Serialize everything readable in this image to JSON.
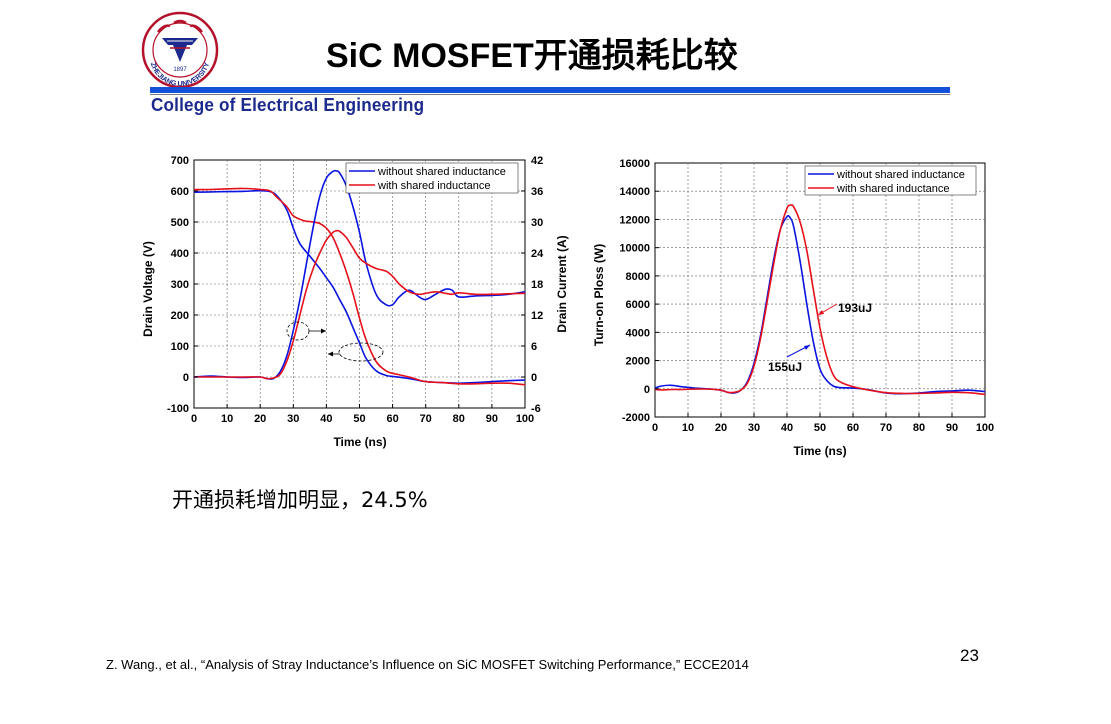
{
  "slide": {
    "title": "SiC MOSFET开通损耗比较",
    "college": "College of Electrical Engineering",
    "logo_text": "ZHEJIANG UNIVERSITY",
    "logo_year": "1897",
    "note": "开通损耗增加明显，24.5%",
    "page_number": "23",
    "reference": "Z. Wang., et al., “Analysis of Stray Inductance’s Influence on SiC MOSFET Switching Performance,” ECCE2014"
  },
  "colors": {
    "blue_series": "#0a14e0",
    "red_series": "#e6101a",
    "accent_bar": "#1450d8",
    "college_text": "#1b2a8c"
  },
  "chart_data": [
    {
      "type": "line",
      "xlabel": "Time (ns)",
      "ylabel": "Drain Voltage (V)",
      "y2label": "Drain Current (A)",
      "xlim": [
        0,
        100
      ],
      "ylim": [
        -100,
        700
      ],
      "y2lim": [
        -6,
        42
      ],
      "x_ticks": [
        "0",
        "10",
        "20",
        "30",
        "40",
        "50",
        "60",
        "70",
        "80",
        "90",
        "100"
      ],
      "y_ticks": [
        "-100",
        "0",
        "100",
        "200",
        "300",
        "400",
        "500",
        "600",
        "700"
      ],
      "y2_ticks": [
        "-6",
        "0",
        "6",
        "12",
        "18",
        "24",
        "30",
        "36",
        "42"
      ],
      "grid": true,
      "legend_position": "top-right",
      "legend": [
        "without shared inductance",
        "with shared inductance"
      ],
      "series": [
        {
          "name": "without shared inductance",
          "quantity": "voltage",
          "axis": "left",
          "x": [
            0,
            5,
            10,
            15,
            20,
            23,
            25,
            28,
            30,
            32,
            35,
            38,
            40,
            42,
            44,
            46,
            48,
            50,
            52,
            55,
            58,
            60,
            65,
            70,
            75,
            80,
            85,
            90,
            95,
            100
          ],
          "y": [
            596,
            597,
            598,
            599,
            601,
            598,
            585,
            540,
            480,
            430,
            390,
            350,
            320,
            290,
            250,
            210,
            160,
            110,
            60,
            20,
            5,
            2,
            -5,
            -15,
            -18,
            -20,
            -18,
            -15,
            -12,
            -10
          ]
        },
        {
          "name": "with shared inductance",
          "quantity": "voltage",
          "axis": "left",
          "x": [
            0,
            5,
            10,
            15,
            20,
            23,
            25,
            28,
            30,
            33,
            36,
            38,
            40,
            42,
            44,
            46,
            48,
            50,
            52,
            55,
            58,
            60,
            65,
            70,
            75,
            80,
            85,
            90,
            95,
            100
          ],
          "y": [
            605,
            605,
            607,
            608,
            605,
            600,
            580,
            550,
            520,
            505,
            500,
            495,
            480,
            450,
            400,
            340,
            270,
            190,
            120,
            50,
            20,
            12,
            0,
            -15,
            -18,
            -22,
            -22,
            -20,
            -20,
            -25
          ]
        },
        {
          "name": "without shared inductance",
          "quantity": "current",
          "axis": "right",
          "x": [
            0,
            5,
            10,
            15,
            20,
            22,
            24,
            26,
            28,
            30,
            32,
            34,
            36,
            38,
            40,
            42,
            43,
            44,
            46,
            48,
            50,
            52,
            55,
            58,
            60,
            62,
            65,
            68,
            70,
            73,
            76,
            78,
            80,
            85,
            90,
            95,
            100
          ],
          "y": [
            0,
            0.2,
            0,
            -0.1,
            0,
            -0.3,
            -0.3,
            1,
            4,
            9,
            15,
            22,
            29,
            35,
            38.5,
            39.8,
            39.9,
            39.5,
            37,
            33,
            28,
            22,
            16,
            14,
            14,
            15.5,
            16.8,
            15.5,
            15,
            16,
            17,
            16.8,
            15.5,
            15.7,
            15.8,
            16,
            16.5
          ]
        },
        {
          "name": "with shared inductance",
          "quantity": "current",
          "axis": "right",
          "x": [
            0,
            5,
            10,
            15,
            20,
            22,
            24,
            26,
            28,
            30,
            32,
            34,
            36,
            38,
            40,
            42,
            43,
            44,
            46,
            48,
            50,
            52,
            55,
            58,
            60,
            62,
            65,
            68,
            70,
            73,
            76,
            78,
            80,
            85,
            90,
            95,
            100
          ],
          "y": [
            0,
            0,
            0,
            0,
            0,
            -0.3,
            -0.2,
            0.5,
            3,
            7,
            12,
            17,
            21,
            24,
            26.5,
            28,
            28.3,
            28.2,
            27,
            25,
            23,
            22,
            21,
            20.5,
            19.5,
            18,
            16.5,
            16,
            16.2,
            16.5,
            16.2,
            16,
            16.3,
            16,
            16,
            16.1,
            16.2
          ]
        }
      ]
    },
    {
      "type": "line",
      "xlabel": "Time (ns)",
      "ylabel": "Turn-on Ploss (W)",
      "xlim": [
        0,
        100
      ],
      "ylim": [
        -2000,
        16000
      ],
      "x_ticks": [
        "0",
        "10",
        "20",
        "30",
        "40",
        "50",
        "60",
        "70",
        "80",
        "90",
        "100"
      ],
      "y_ticks": [
        "-2000",
        "0",
        "2000",
        "4000",
        "6000",
        "8000",
        "10000",
        "12000",
        "14000",
        "16000"
      ],
      "grid": true,
      "legend_position": "top-right",
      "legend": [
        "without shared inductance",
        "with shared inductance"
      ],
      "annotations": [
        "193uJ",
        "155uJ"
      ],
      "series": [
        {
          "name": "without shared inductance",
          "x": [
            0,
            2,
            5,
            8,
            12,
            16,
            20,
            22,
            24,
            26,
            28,
            30,
            32,
            34,
            36,
            38,
            40,
            41,
            42,
            44,
            46,
            48,
            50,
            52,
            54,
            56,
            60,
            65,
            70,
            75,
            80,
            85,
            90,
            95,
            100
          ],
          "y": [
            50,
            200,
            250,
            150,
            50,
            0,
            -100,
            -250,
            -300,
            -100,
            500,
            1800,
            3800,
            6500,
            9200,
            11300,
            12200,
            12100,
            11500,
            9000,
            6000,
            3300,
            1400,
            600,
            200,
            80,
            50,
            -80,
            -300,
            -350,
            -300,
            -200,
            -150,
            -100,
            -200
          ]
        },
        {
          "name": "with shared inductance",
          "x": [
            0,
            2,
            5,
            8,
            12,
            16,
            20,
            22,
            24,
            26,
            28,
            30,
            32,
            34,
            36,
            38,
            40,
            41,
            42,
            44,
            46,
            48,
            50,
            52,
            54,
            56,
            60,
            65,
            70,
            75,
            80,
            85,
            90,
            95,
            100
          ],
          "y": [
            -50,
            -80,
            -50,
            -50,
            -20,
            -20,
            -100,
            -250,
            -250,
            -100,
            400,
            1600,
            3600,
            6200,
            8900,
            11300,
            12800,
            13000,
            12900,
            11800,
            9800,
            7000,
            4300,
            2300,
            1000,
            500,
            150,
            -100,
            -280,
            -330,
            -330,
            -300,
            -250,
            -280,
            -400
          ]
        }
      ]
    }
  ]
}
